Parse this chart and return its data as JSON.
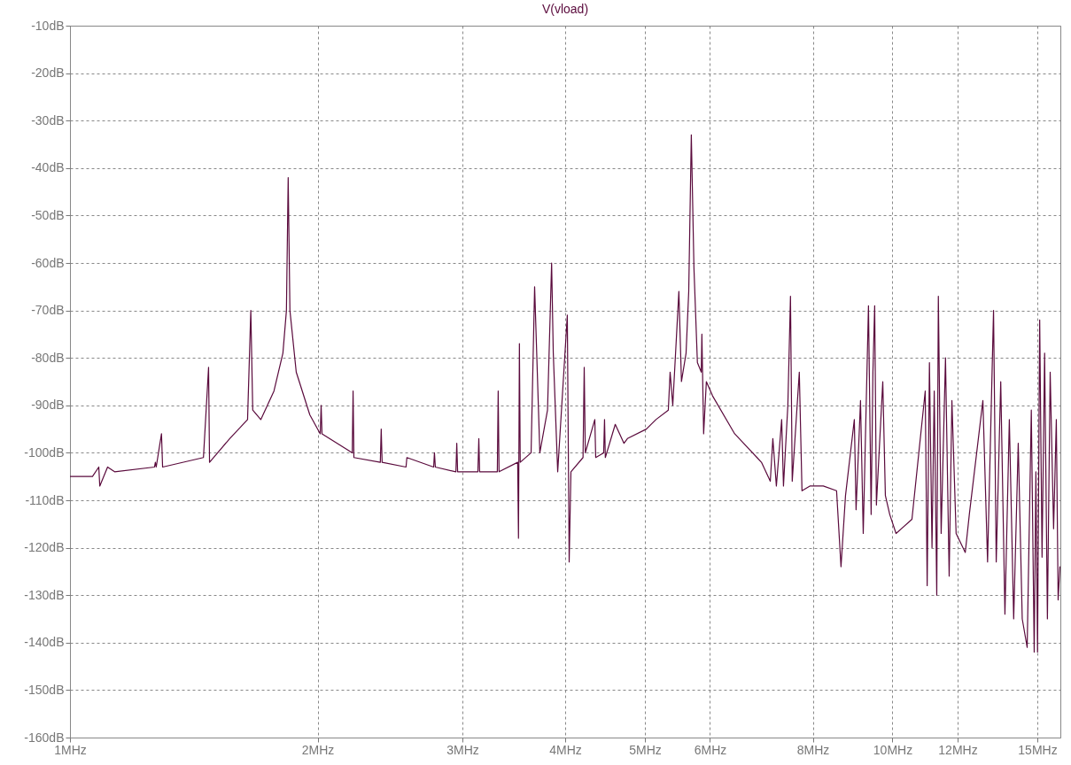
{
  "chart_data": {
    "type": "line",
    "title": "V(vload)",
    "x": [
      1,
      1.065,
      1.084,
      1.087,
      1.111,
      1.133,
      1.267,
      1.27,
      1.273,
      1.292,
      1.296,
      1.453,
      1.474,
      1.478,
      1.564,
      1.644,
      1.659,
      1.668,
      1.706,
      1.77,
      1.815,
      1.833,
      1.842,
      1.851,
      1.884,
      1.957,
      2.015,
      2.02,
      2.025,
      2.204,
      2.209,
      2.214,
      2.384,
      2.39,
      2.396,
      2.562,
      2.568,
      2.768,
      2.774,
      2.781,
      2.946,
      2.953,
      2.96,
      3.133,
      3.141,
      3.148,
      3.308,
      3.316,
      3.324,
      3.502,
      3.51,
      3.519,
      3.527,
      3.636,
      3.672,
      3.726,
      3.807,
      3.851,
      3.869,
      3.917,
      4.024,
      4.045,
      4.065,
      4.205,
      4.219,
      4.232,
      4.346,
      4.357,
      4.455,
      4.466,
      4.476,
      4.602,
      4.716,
      4.762,
      5.02,
      5.157,
      5.339,
      5.366,
      5.406,
      5.499,
      5.539,
      5.611,
      5.653,
      5.694,
      5.736,
      5.792,
      5.855,
      5.865,
      5.894,
      5.939,
      6.043,
      6.429,
      6.844,
      6.929,
      7.103,
      7.154,
      7.225,
      7.333,
      7.37,
      7.461,
      7.516,
      7.553,
      7.704,
      7.762,
      7.935,
      8.239,
      8.551,
      8.658,
      8.768,
      8.987,
      9.031,
      9.144,
      9.214,
      9.35,
      9.42,
      9.467,
      9.514,
      9.56,
      9.732,
      9.803,
      9.924,
      10.1,
      10.56,
      10.96,
      11.02,
      11.09,
      11.17,
      11.24,
      11.32,
      11.37,
      11.46,
      11.6,
      11.72,
      11.81,
      11.95,
      12.26,
      12.4,
      12.88,
      13.05,
      13.27,
      13.37,
      13.54,
      13.7,
      13.87,
      14.04,
      14.22,
      14.38,
      14.58,
      14.75,
      14.87,
      14.94,
      15.01,
      15.1,
      15.2,
      15.31,
      15.43,
      15.55,
      15.7,
      15.82,
      15.9,
      15.98
    ],
    "series": [
      {
        "color": "#5a0a3c",
        "values": [
          -105,
          -105,
          -103,
          -107,
          -103,
          -104,
          -103,
          -102,
          -103,
          -96,
          -103,
          -101,
          -82,
          -102,
          -97,
          -93,
          -70,
          -91,
          -93,
          -87,
          -79,
          -70,
          -42,
          -70,
          -83,
          -92,
          -96,
          -90,
          -96,
          -100,
          -87,
          -101,
          -102,
          -95,
          -102,
          -103,
          -101,
          -103,
          -100,
          -103,
          -104,
          -98,
          -104,
          -104,
          -97,
          -104,
          -104,
          -87,
          -104,
          -102,
          -118,
          -77,
          -102,
          -100,
          -65,
          -100,
          -91,
          -60,
          -79,
          -104,
          -71,
          -123,
          -104,
          -101,
          -82,
          -100,
          -93,
          -101,
          -100,
          -93,
          -101,
          -94,
          -98,
          -97,
          -95,
          -93,
          -91,
          -83,
          -90,
          -66,
          -85,
          -79,
          -66,
          -33,
          -61,
          -81,
          -83,
          -75,
          -96,
          -85,
          -88,
          -96,
          -101,
          -102,
          -106,
          -97,
          -107,
          -93,
          -107,
          -90,
          -67,
          -106,
          -83,
          -108,
          -107,
          -107,
          -108,
          -124,
          -109,
          -93,
          -112,
          -89,
          -117,
          -69,
          -113,
          -83,
          -69,
          -111,
          -85,
          -109,
          -113,
          -117,
          -114,
          -87,
          -128,
          -81,
          -120,
          -87,
          -130,
          -67,
          -117,
          -80,
          -126,
          -89,
          -117,
          -121,
          -113,
          -89,
          -123,
          -70,
          -123,
          -85,
          -134,
          -93,
          -135,
          -98,
          -135,
          -141,
          -91,
          -142,
          -104,
          -142,
          -72,
          -122,
          -79,
          -135,
          -83,
          -116,
          -93,
          -131,
          -124
        ]
      }
    ],
    "xlim": [
      1,
      16
    ],
    "log": "x",
    "xticks": [
      {
        "value": 1,
        "label": "1MHz"
      },
      {
        "value": 2,
        "label": "2MHz"
      },
      {
        "value": 3,
        "label": "3MHz"
      },
      {
        "value": 4,
        "label": "4MHz"
      },
      {
        "value": 5,
        "label": "5MHz"
      },
      {
        "value": 6,
        "label": "6MHz"
      },
      {
        "value": 8,
        "label": "8MHz"
      },
      {
        "value": 10,
        "label": "10MHz"
      },
      {
        "value": 12,
        "label": "12MHz"
      },
      {
        "value": 15,
        "label": "15MHz"
      }
    ],
    "ylim": [
      -160,
      -10
    ],
    "yticks": [
      {
        "value": -160,
        "label": "-160dB"
      },
      {
        "value": -150,
        "label": "-150dB"
      },
      {
        "value": -140,
        "label": "-140dB"
      },
      {
        "value": -130,
        "label": "-130dB"
      },
      {
        "value": -120,
        "label": "-120dB"
      },
      {
        "value": -110,
        "label": "-110dB"
      },
      {
        "value": -100,
        "label": "-100dB"
      },
      {
        "value": -90,
        "label": "-90dB"
      },
      {
        "value": -80,
        "label": "-80dB"
      },
      {
        "value": -70,
        "label": "-70dB"
      },
      {
        "value": -60,
        "label": "-60dB"
      },
      {
        "value": -50,
        "label": "-50dB"
      },
      {
        "value": -40,
        "label": "-40dB"
      },
      {
        "value": -30,
        "label": "-30dB"
      },
      {
        "value": -20,
        "label": "-20dB"
      },
      {
        "value": -10,
        "label": "-10dB"
      }
    ],
    "grid": true,
    "line_style": "solid"
  }
}
